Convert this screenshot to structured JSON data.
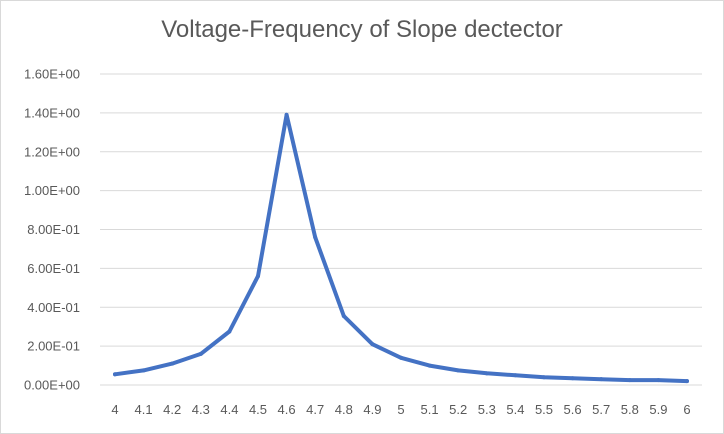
{
  "chart_data": {
    "type": "line",
    "title": "Voltage-Frequency of Slope dectector",
    "xlabel": "",
    "ylabel": "",
    "categories": [
      "4",
      "4.1",
      "4.2",
      "4.3",
      "4.4",
      "4.5",
      "4.6",
      "4.7",
      "4.8",
      "4.9",
      "5",
      "5.1",
      "5.2",
      "5.3",
      "5.4",
      "5.5",
      "5.6",
      "5.7",
      "5.8",
      "5.9",
      "6"
    ],
    "series": [
      {
        "values": [
          0.055,
          0.075,
          0.11,
          0.16,
          0.275,
          0.56,
          1.39,
          0.76,
          0.355,
          0.21,
          0.14,
          0.1,
          0.075,
          0.06,
          0.05,
          0.04,
          0.035,
          0.03,
          0.025,
          0.025,
          0.02
        ],
        "color": "#4472c4"
      }
    ],
    "ylim": [
      0,
      1.6
    ],
    "yticks": [
      0,
      0.2,
      0.4,
      0.6,
      0.8,
      1.0,
      1.2,
      1.4,
      1.6
    ],
    "ytick_labels": [
      "0.00E+00",
      "2.00E-01",
      "4.00E-01",
      "6.00E-01",
      "8.00E-01",
      "1.00E+00",
      "1.20E+00",
      "1.40E+00",
      "1.60E+00"
    ],
    "grid": true,
    "legend": "none",
    "gridline_color": "#d9d9d9",
    "text_color": "#595959"
  }
}
